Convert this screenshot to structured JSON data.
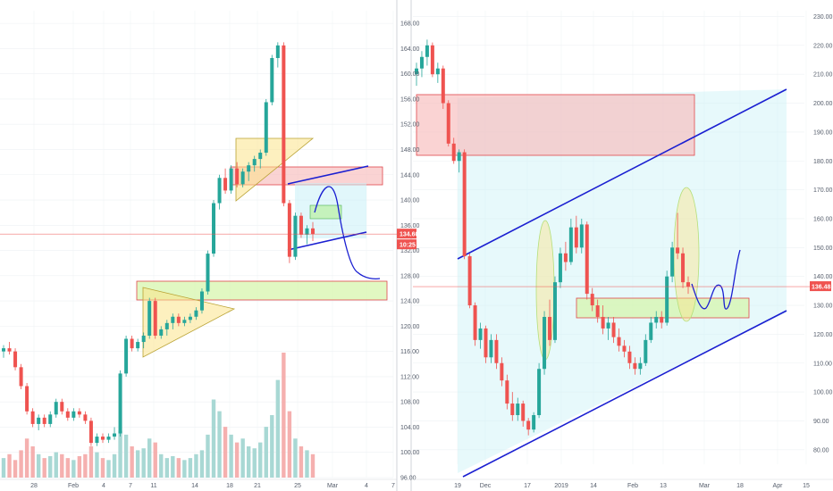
{
  "chart_data": [
    {
      "type": "candlestick",
      "panel": "left",
      "y_ticks": [
        "96.00",
        "100.00",
        "104.00",
        "108.00",
        "112.00",
        "116.00",
        "120.00",
        "124.00",
        "128.00",
        "132.00",
        "136.00",
        "140.00",
        "144.00",
        "148.00",
        "152.00",
        "156.00",
        "160.00",
        "164.00",
        "168.00"
      ],
      "ylim": [
        96,
        170
      ],
      "x_ticks": [
        "28",
        "Feb",
        "4",
        "7",
        "11",
        "14",
        "18",
        "21",
        "25",
        "Mar",
        "4",
        "7"
      ],
      "current_price_labels": [
        "134.60",
        "10:25"
      ],
      "colors": {
        "up": "#26a69a",
        "down": "#ef5350",
        "upVolume": "#9fd4cf",
        "downVolume": "#f4a7a6"
      },
      "candles": [
        [
          116,
          117,
          115,
          116.5
        ],
        [
          116.5,
          117.5,
          115.5,
          116
        ],
        [
          116,
          116.5,
          113,
          113.5
        ],
        [
          113.5,
          114,
          110,
          110.5
        ],
        [
          110.5,
          111,
          106,
          106.5
        ],
        [
          106.5,
          107,
          104,
          104.5
        ],
        [
          104.5,
          106,
          103.5,
          105.5
        ],
        [
          105.5,
          106,
          104,
          104.5
        ],
        [
          104.5,
          106.5,
          104,
          106
        ],
        [
          106,
          108.5,
          105.5,
          108
        ],
        [
          108,
          108.5,
          106,
          106.5
        ],
        [
          106.5,
          107,
          105,
          105.5
        ],
        [
          105.5,
          107,
          105,
          106.5
        ],
        [
          106.5,
          107,
          105.5,
          106
        ],
        [
          106,
          106.5,
          104.5,
          105
        ],
        [
          105,
          105.5,
          101,
          101.5
        ],
        [
          101.5,
          103,
          101,
          102.5
        ],
        [
          102.5,
          103,
          101.5,
          102
        ],
        [
          102,
          103,
          101.5,
          102.5
        ],
        [
          102.5,
          104,
          102,
          103
        ],
        [
          103,
          113,
          102.5,
          112.5
        ],
        [
          112.5,
          118.5,
          112,
          118
        ],
        [
          118,
          118.5,
          116,
          116.5
        ],
        [
          116.5,
          118,
          116,
          117.5
        ],
        [
          117.5,
          119,
          116.5,
          118.5
        ],
        [
          118.5,
          124.5,
          118,
          124
        ],
        [
          124,
          124.5,
          118,
          118.5
        ],
        [
          118.5,
          120,
          118,
          119.5
        ],
        [
          119.5,
          121,
          118.5,
          120.5
        ],
        [
          120.5,
          122,
          119.5,
          121.5
        ],
        [
          121.5,
          122,
          120,
          120.5
        ],
        [
          120.5,
          121.5,
          120,
          121
        ],
        [
          121,
          122,
          120.5,
          121.5
        ],
        [
          121.5,
          123,
          121,
          122.5
        ],
        [
          122.5,
          126,
          122,
          125.5
        ],
        [
          125.5,
          132,
          125,
          131.5
        ],
        [
          131.5,
          140,
          131,
          139.5
        ],
        [
          139.5,
          144,
          138.5,
          143.5
        ],
        [
          143.5,
          145,
          141,
          141.5
        ],
        [
          141.5,
          145.5,
          141,
          145
        ],
        [
          145,
          146,
          142,
          142.5
        ],
        [
          142.5,
          145,
          142,
          144.5
        ],
        [
          144.5,
          146,
          143,
          145.5
        ],
        [
          145.5,
          147,
          144.5,
          146.5
        ],
        [
          146.5,
          148,
          145,
          147.5
        ],
        [
          147.5,
          156,
          147,
          155.5
        ],
        [
          155.5,
          163,
          155,
          162.5
        ],
        [
          162.5,
          165,
          161,
          164.5
        ],
        [
          164.5,
          165,
          139,
          139.5
        ],
        [
          139.5,
          140,
          130,
          131
        ],
        [
          131,
          138,
          130.5,
          137.5
        ],
        [
          137.5,
          138,
          134,
          134.5
        ],
        [
          134.5,
          136,
          133,
          135.5
        ],
        [
          135.5,
          136.5,
          133.5,
          134.6
        ]
      ],
      "volumes": [
        10,
        12,
        9,
        14,
        20,
        16,
        12,
        10,
        11,
        13,
        12,
        10,
        9,
        11,
        12,
        16,
        13,
        10,
        9,
        12,
        24,
        22,
        16,
        14,
        15,
        20,
        18,
        12,
        10,
        11,
        10,
        9,
        10,
        12,
        14,
        22,
        40,
        34,
        26,
        22,
        18,
        20,
        16,
        15,
        18,
        26,
        32,
        50,
        64,
        34,
        20,
        16,
        14,
        12
      ]
    },
    {
      "type": "candlestick",
      "panel": "right",
      "y_ticks": [
        "80.00",
        "90.00",
        "100.00",
        "110.00",
        "120.00",
        "130.00",
        "140.00",
        "150.00",
        "160.00",
        "170.00",
        "180.00",
        "190.00",
        "200.00",
        "210.00",
        "220.00",
        "230.00"
      ],
      "ylim": [
        75,
        232
      ],
      "x_ticks": [
        "19",
        "Dec",
        "17",
        "2019",
        "14",
        "Feb",
        "13",
        "Mar",
        "18",
        "Apr",
        "15"
      ],
      "current_price_labels": [
        "136.48"
      ],
      "candles": [
        [
          210,
          214,
          206,
          212
        ],
        [
          212,
          218,
          209,
          216
        ],
        [
          216,
          222,
          213,
          220
        ],
        [
          220,
          221,
          209,
          210
        ],
        [
          210,
          214,
          207,
          212
        ],
        [
          212,
          213,
          198,
          200
        ],
        [
          200,
          201,
          185,
          186
        ],
        [
          186,
          188,
          179,
          180
        ],
        [
          180,
          184,
          176,
          183
        ],
        [
          183,
          184,
          146,
          147
        ],
        [
          147,
          148,
          129,
          130
        ],
        [
          130,
          131,
          116,
          118
        ],
        [
          118,
          124,
          115,
          122
        ],
        [
          122,
          123,
          110,
          112
        ],
        [
          112,
          120,
          110,
          118
        ],
        [
          118,
          120,
          108,
          110
        ],
        [
          110,
          112,
          102,
          104
        ],
        [
          104,
          106,
          94,
          96
        ],
        [
          96,
          100,
          90,
          92
        ],
        [
          92,
          98,
          90,
          96
        ],
        [
          96,
          97,
          88,
          90
        ],
        [
          90,
          91,
          85,
          87
        ],
        [
          87,
          93,
          86,
          92
        ],
        [
          92,
          110,
          91,
          108
        ],
        [
          108,
          128,
          106,
          126
        ],
        [
          126,
          132,
          116,
          118
        ],
        [
          118,
          140,
          117,
          138
        ],
        [
          138,
          150,
          136,
          148
        ],
        [
          148,
          152,
          142,
          145
        ],
        [
          145,
          160,
          144,
          157
        ],
        [
          157,
          161,
          148,
          150
        ],
        [
          150,
          160,
          148,
          158
        ],
        [
          158,
          159,
          132,
          134
        ],
        [
          134,
          136,
          128,
          130
        ],
        [
          130,
          132,
          124,
          126
        ],
        [
          126,
          130,
          120,
          122
        ],
        [
          122,
          126,
          118,
          124
        ],
        [
          124,
          126,
          117,
          119
        ],
        [
          119,
          122,
          114,
          116
        ],
        [
          116,
          118,
          112,
          114
        ],
        [
          114,
          116,
          108,
          110
        ],
        [
          110,
          112,
          106,
          108
        ],
        [
          108,
          112,
          106,
          110
        ],
        [
          110,
          120,
          109,
          118
        ],
        [
          118,
          126,
          117,
          124
        ],
        [
          124,
          128,
          122,
          126
        ],
        [
          126,
          128,
          122,
          124
        ],
        [
          124,
          142,
          123,
          140
        ],
        [
          140,
          152,
          138,
          150
        ],
        [
          150,
          162,
          146,
          148
        ],
        [
          148,
          150,
          136,
          138
        ],
        [
          138,
          140,
          134,
          136.48
        ]
      ]
    }
  ]
}
